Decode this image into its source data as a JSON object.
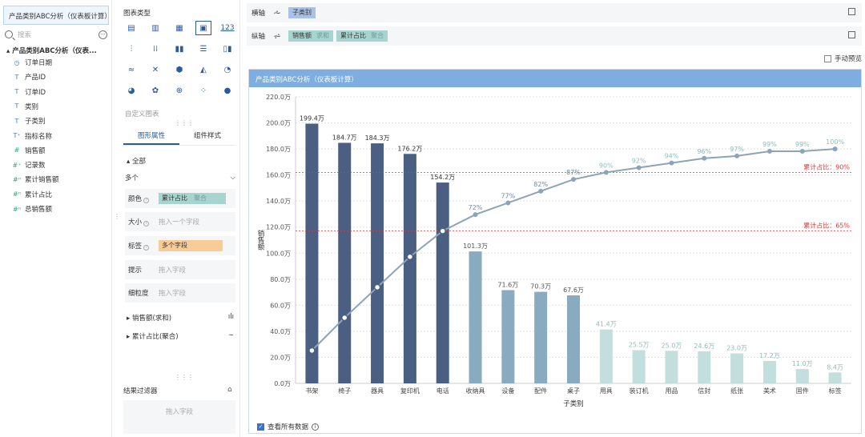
{
  "datasource": {
    "tab_label": "产品类别ABC分析（仪表板计算）"
  },
  "search": {
    "placeholder": "搜索"
  },
  "tree": {
    "root": "产品类别ABC分析（仪表...",
    "fields": [
      {
        "icon": "clock-icon",
        "glyph": "◷",
        "label": "订单日期",
        "green": false
      },
      {
        "icon": "text-type-icon",
        "glyph": "T",
        "label": "产品ID",
        "green": false
      },
      {
        "icon": "text-type-icon",
        "glyph": "T",
        "label": "订单ID",
        "green": false
      },
      {
        "icon": "text-type-icon",
        "glyph": "T",
        "label": "类别",
        "green": false
      },
      {
        "icon": "text-type-icon",
        "glyph": "T",
        "label": "子类别",
        "green": false
      },
      {
        "icon": "text-type-icon",
        "glyph": "T⁺",
        "label": "指标名称",
        "green": false
      },
      {
        "icon": "number-type-icon",
        "glyph": "#",
        "label": "销售额",
        "green": true
      },
      {
        "icon": "number-type-icon",
        "glyph": "#⁺",
        "label": "记录数",
        "green": true
      },
      {
        "icon": "calc-field-icon",
        "glyph": "#ⁿ",
        "label": "累计销售额",
        "green": true
      },
      {
        "icon": "calc-field-icon",
        "glyph": "#ⁿ",
        "label": "累计占比",
        "green": true
      },
      {
        "icon": "calc-field-icon",
        "glyph": "#ⁿ",
        "label": "总销售额",
        "green": true
      }
    ]
  },
  "chart_types": {
    "title": "图表类型",
    "custom_label": "自定义图表"
  },
  "property_tabs": {
    "graphic": "图形属性",
    "component": "组件样式"
  },
  "properties": {
    "all_label": "全部",
    "multi_label": "多个",
    "color_label": "颜色",
    "color_field": "累计占比",
    "color_agg": "聚合",
    "size_label": "大小",
    "size_placeholder": "拖入一个字段",
    "label_label": "标签",
    "label_field": "多个字段",
    "tooltip_label": "提示",
    "tooltip_placeholder": "拖入字段",
    "granularity_label": "细粒度",
    "granularity_placeholder": "拖入字段",
    "measure1": "销售额(求和)",
    "measure2": "累计占比(聚合)"
  },
  "filter": {
    "title": "结果过滤器",
    "placeholder": "拖入字段"
  },
  "x_axis": {
    "label": "横轴",
    "field": "子类别"
  },
  "y_axis": {
    "label": "纵轴",
    "field1": "销售额",
    "agg1": "求和",
    "field2": "累计占比",
    "agg2": "聚合"
  },
  "manual_preview": "手动预览",
  "chart_title": "产品类别ABC分析（仪表板计算）",
  "view_all": "查看所有数据",
  "colors": {
    "classA": "#4a5f82",
    "classB": "#8aaac0",
    "classC": "#c2dedd",
    "line": "#8da3b8",
    "ref": "#e5373a",
    "header": "#7eaee0"
  },
  "chart_data": {
    "type": "bar",
    "xlabel": "子类别",
    "ylabel": "销售额",
    "ylim": [
      0,
      220
    ],
    "ytick_labels": [
      "0.0万",
      "20.0万",
      "40.0万",
      "60.0万",
      "80.0万",
      "100.0万",
      "120.0万",
      "140.0万",
      "160.0万",
      "180.0万",
      "200.0万",
      "220.0万"
    ],
    "categories": [
      "书架",
      "椅子",
      "器具",
      "复印机",
      "电话",
      "收纳具",
      "设备",
      "配件",
      "桌子",
      "用具",
      "装订机",
      "用品",
      "信封",
      "纸张",
      "美术",
      "固件",
      "标签"
    ],
    "values": [
      199.4,
      184.7,
      184.3,
      176.2,
      154.2,
      101.3,
      71.6,
      70.3,
      67.6,
      41.4,
      25.5,
      25.0,
      24.6,
      23.0,
      17.2,
      11.0,
      8.4
    ],
    "value_labels": [
      "199.4万",
      "184.7万",
      "184.3万",
      "176.2万",
      "154.2万",
      "101.3万",
      "71.6万",
      "70.3万",
      "67.6万",
      "41.4万",
      "25.5万",
      "25.0万",
      "24.6万",
      "23.0万",
      "17.2万",
      "11.0万",
      "8.4万"
    ],
    "cumulative_labels": [
      "",
      "",
      "",
      "",
      "",
      "72%",
      "77%",
      "82%",
      "87%",
      "90%",
      "92%",
      "94%",
      "96%",
      "97%",
      "99%",
      "99%",
      "100%"
    ],
    "cumulative_pct": [
      14,
      28,
      41,
      54,
      65,
      72,
      77,
      82,
      87,
      90,
      92,
      94,
      96,
      97,
      99,
      99,
      100
    ],
    "class": [
      "A",
      "A",
      "A",
      "A",
      "A",
      "B",
      "B",
      "B",
      "B",
      "C",
      "C",
      "C",
      "C",
      "C",
      "C",
      "C",
      "C"
    ],
    "ref_lines": [
      {
        "pct": 90,
        "label": "累计占比：90%"
      },
      {
        "pct": 65,
        "label": "累计占比：65%"
      }
    ]
  }
}
